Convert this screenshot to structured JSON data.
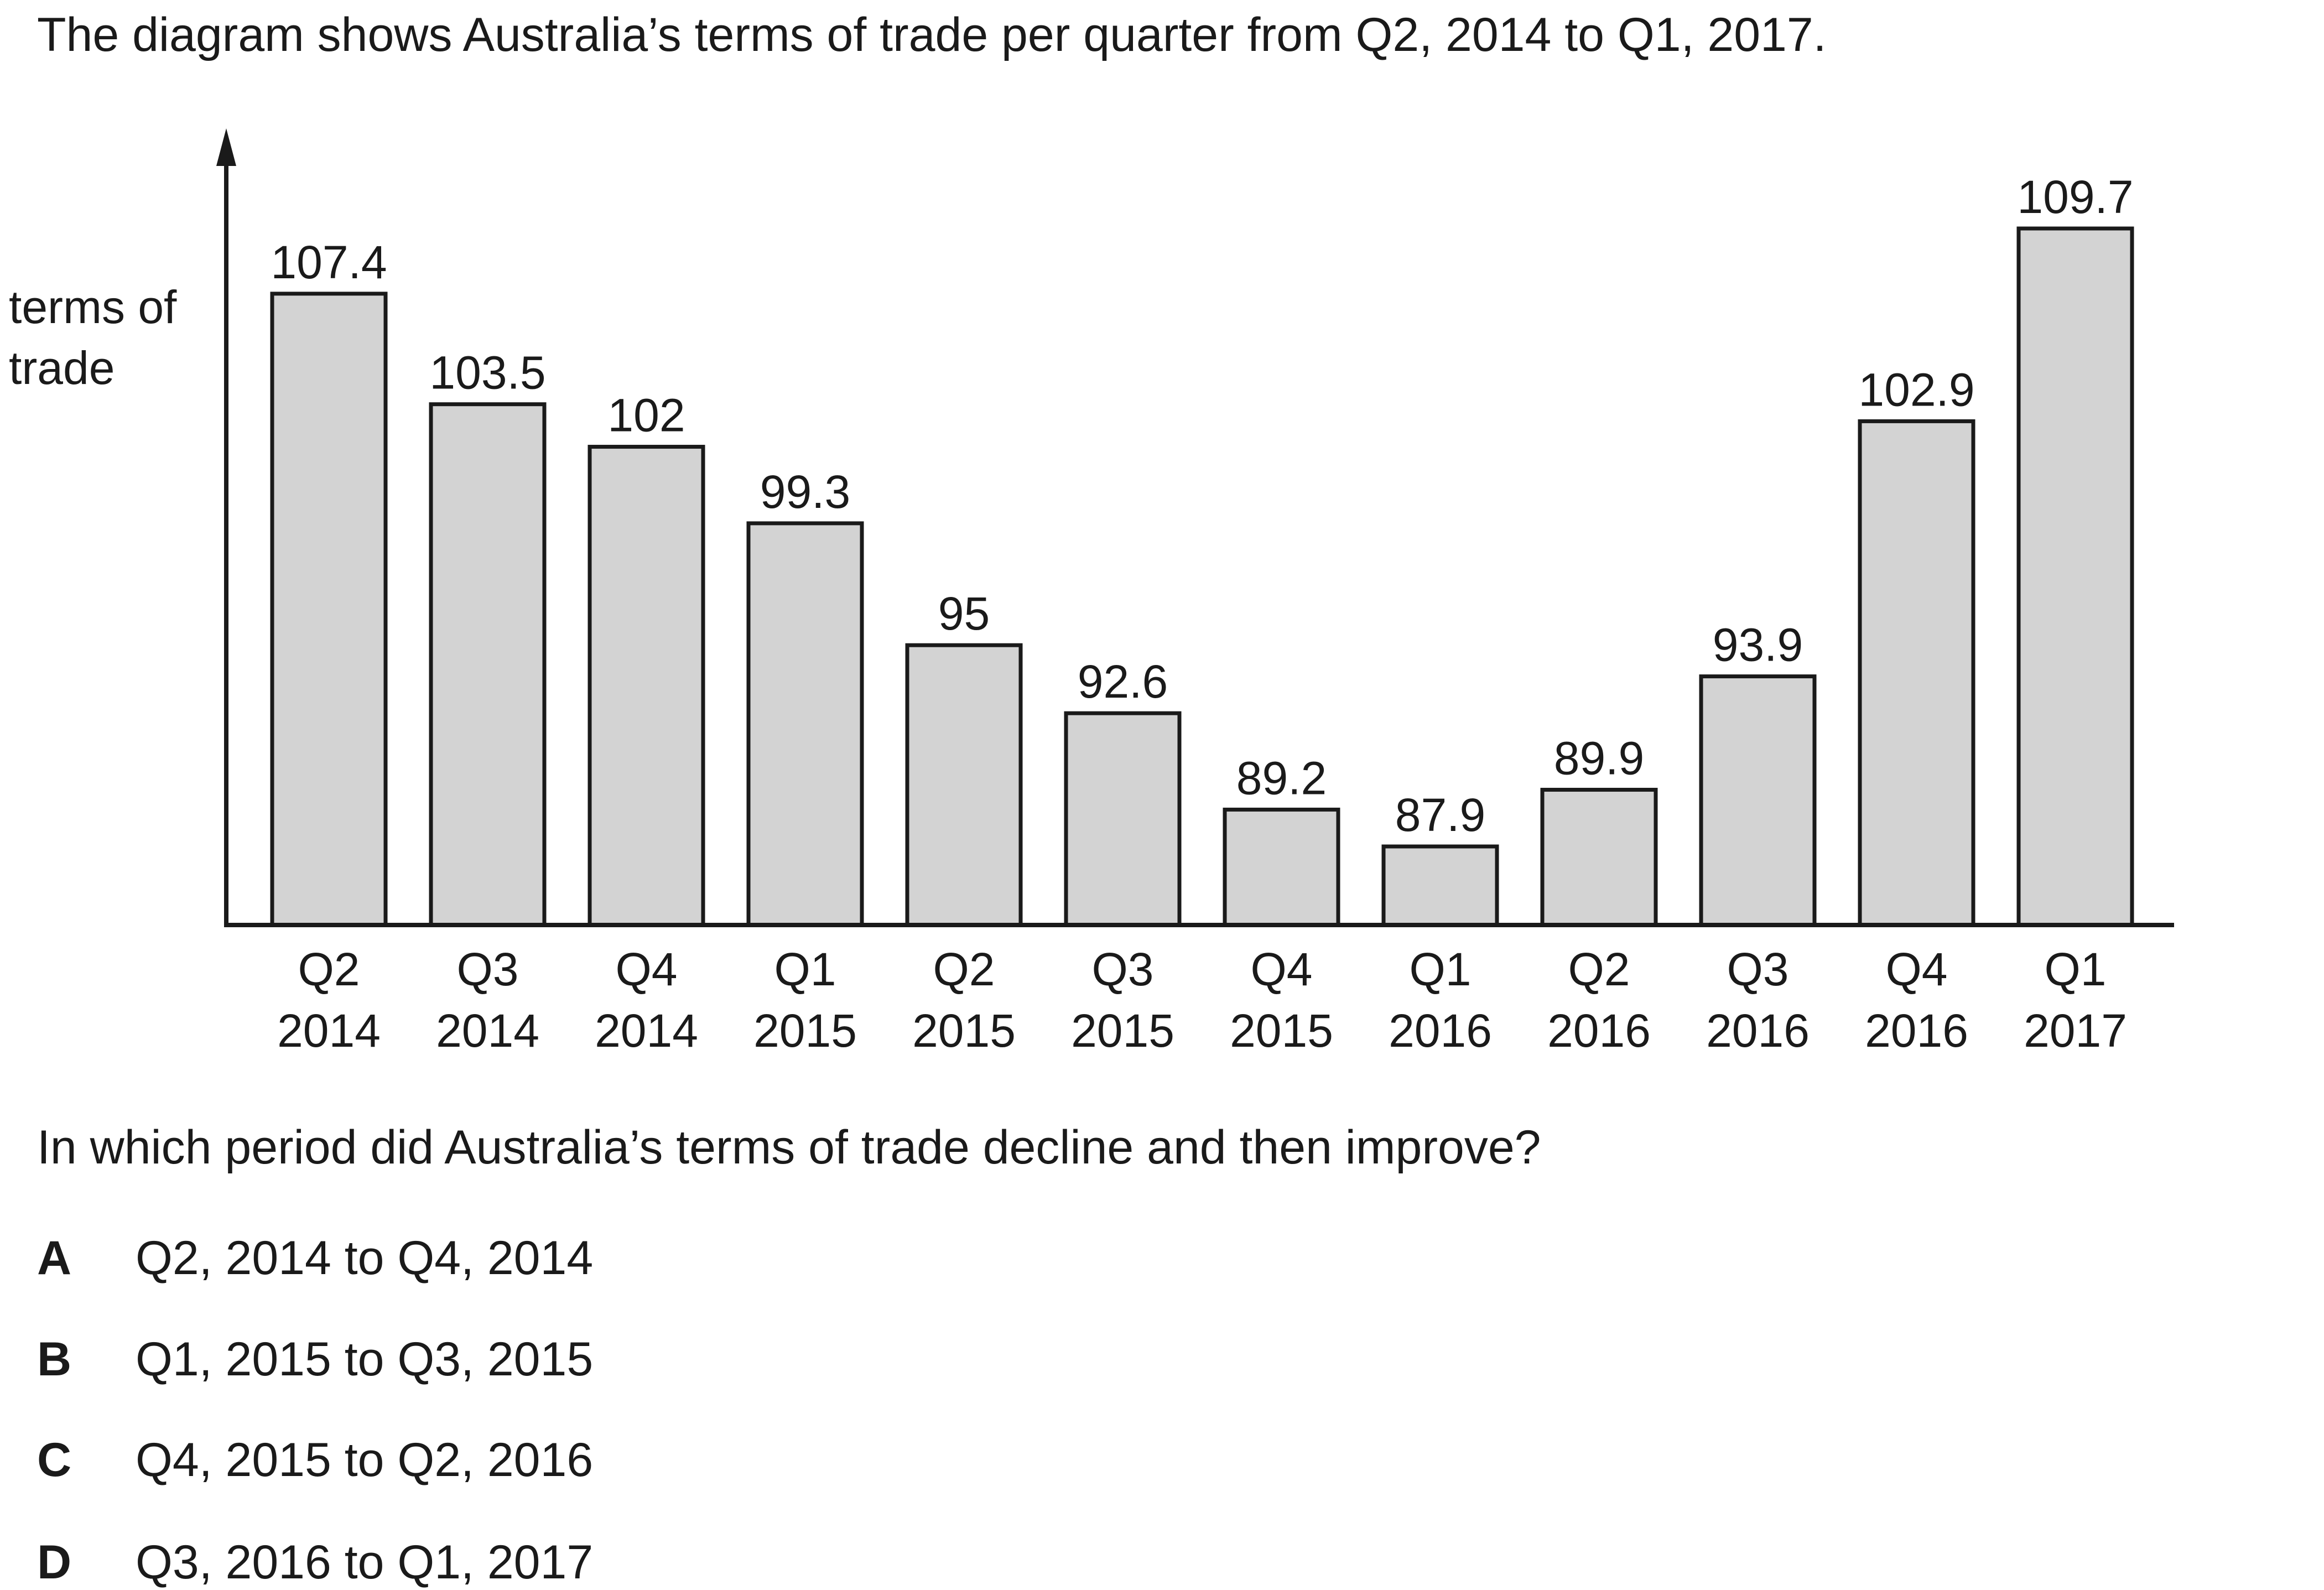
{
  "intro": "The diagram shows Australia’s terms of trade per quarter from Q2, 2014 to Q1, 2017.",
  "chart_data": {
    "type": "bar",
    "ylabel_lines": [
      "terms of",
      "trade"
    ],
    "categories": [
      [
        "Q2",
        "2014"
      ],
      [
        "Q3",
        "2014"
      ],
      [
        "Q4",
        "2014"
      ],
      [
        "Q1",
        "2015"
      ],
      [
        "Q2",
        "2015"
      ],
      [
        "Q3",
        "2015"
      ],
      [
        "Q4",
        "2015"
      ],
      [
        "Q1",
        "2016"
      ],
      [
        "Q2",
        "2016"
      ],
      [
        "Q3",
        "2016"
      ],
      [
        "Q4",
        "2016"
      ],
      [
        "Q1",
        "2017"
      ]
    ],
    "values": [
      107.4,
      103.5,
      102,
      99.3,
      95,
      92.6,
      89.2,
      87.9,
      89.9,
      93.9,
      102.9,
      109.7
    ],
    "value_labels": [
      "107.4",
      "103.5",
      "102",
      "99.3",
      "95",
      "92.6",
      "89.2",
      "87.9",
      "89.9",
      "93.9",
      "102.9",
      "109.7"
    ],
    "bar_color": "#d3d3d3",
    "grid": false
  },
  "question": "In which period did Australia’s terms of trade decline and then improve?",
  "options": [
    {
      "letter": "A",
      "text": "Q2, 2014 to Q4, 2014"
    },
    {
      "letter": "B",
      "text": "Q1, 2015 to Q3, 2015"
    },
    {
      "letter": "C",
      "text": "Q4, 2015 to Q2, 2016"
    },
    {
      "letter": "D",
      "text": "Q3, 2016 to Q1, 2017"
    }
  ]
}
